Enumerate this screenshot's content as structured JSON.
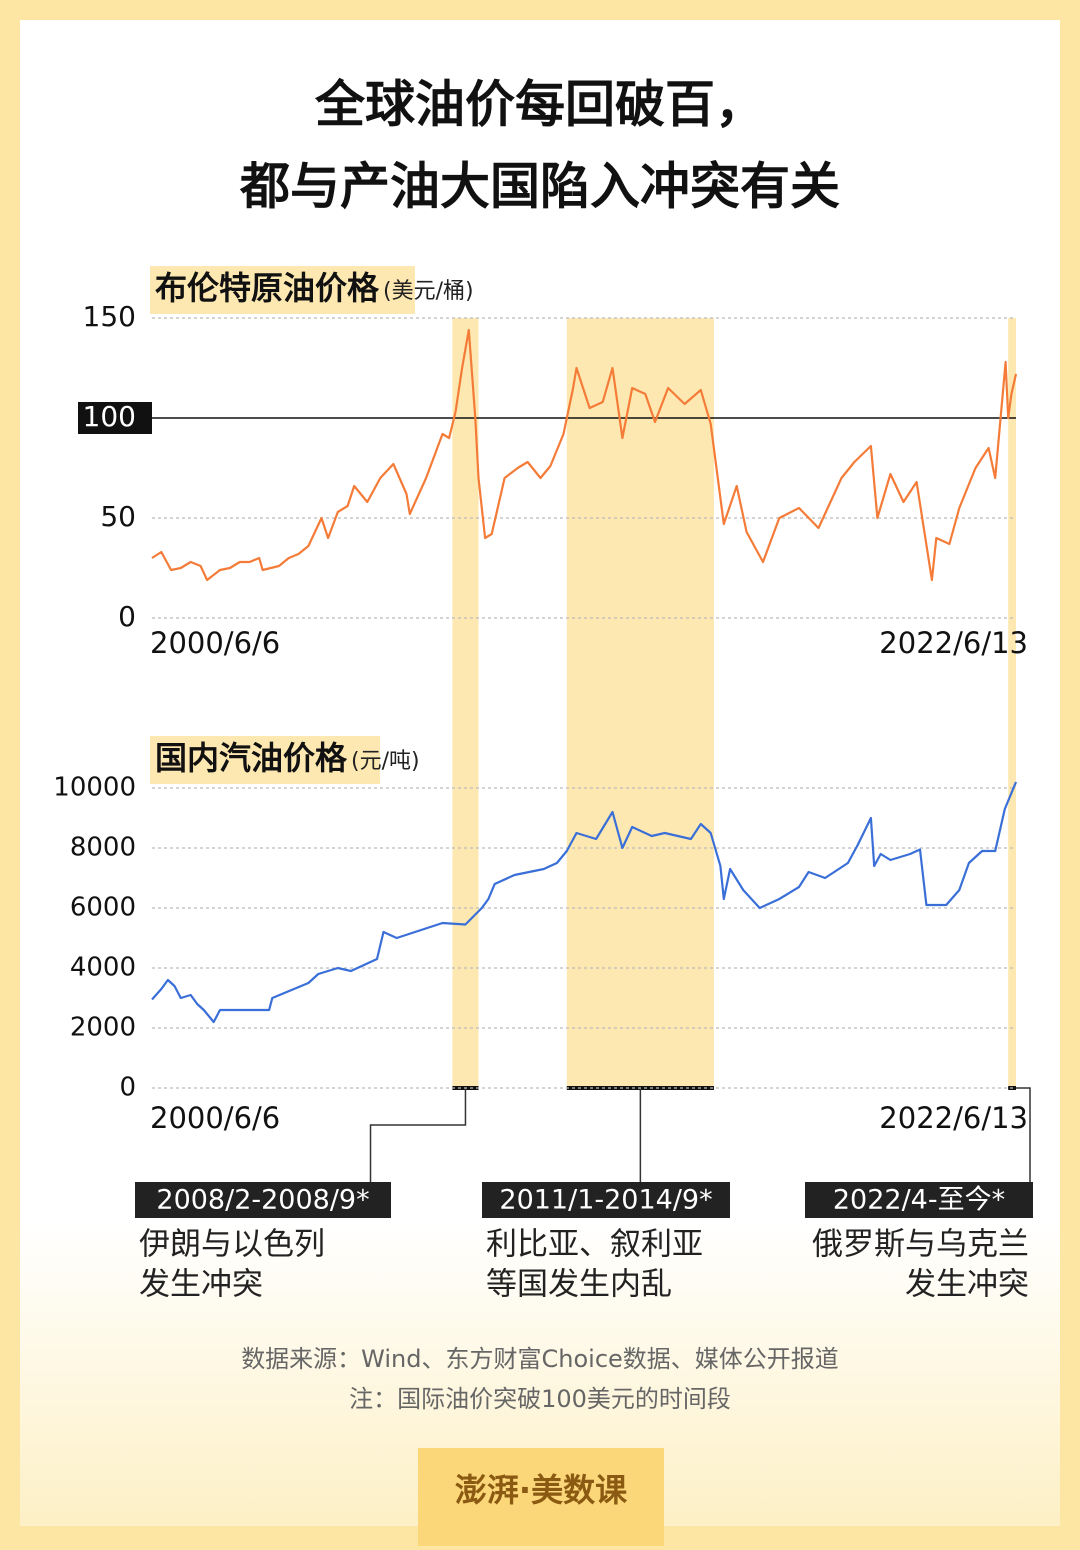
{
  "title": [
    "全球油价每回破百，",
    "都与产油大国陷入冲突有关"
  ],
  "chart_data": [
    {
      "type": "line",
      "title": "布伦特原油价格",
      "unit": "(美元/桶)",
      "color": "#f47c38",
      "xlim": [
        "2000/6/6",
        "2022/6/13"
      ],
      "xticks": [
        "2000/6/6",
        "2022/6/13"
      ],
      "ylim": [
        0,
        150
      ],
      "yticks": [
        0,
        50,
        100,
        150
      ],
      "reference_line": 100,
      "grid": true,
      "x": [
        "2000/6/6",
        "2000/9",
        "2000/12",
        "2001/3",
        "2001/6",
        "2001/9",
        "2001/11",
        "2002/3",
        "2002/6",
        "2002/9",
        "2002/12",
        "2003/3",
        "2003/4",
        "2003/9",
        "2003/12",
        "2004/3",
        "2004/6",
        "2004/10",
        "2004/12",
        "2005/3",
        "2005/6",
        "2005/8",
        "2005/12",
        "2006/4",
        "2006/8",
        "2006/12",
        "2007/1",
        "2007/6",
        "2007/11",
        "2008/1",
        "2008/3",
        "2008/5",
        "2008/7/3",
        "2008/9",
        "2008/10",
        "2008/12",
        "2009/2",
        "2009/6",
        "2009/10",
        "2010/1",
        "2010/5",
        "2010/8",
        "2010/12",
        "2011/3",
        "2011/4",
        "2011/8",
        "2011/12",
        "2012/3",
        "2012/6",
        "2012/9",
        "2013/1",
        "2013/4",
        "2013/8",
        "2014/1",
        "2014/6",
        "2014/9",
        "2014/12",
        "2015/1",
        "2015/5",
        "2015/8",
        "2016/1",
        "2016/6",
        "2016/12",
        "2017/6",
        "2018/1",
        "2018/5",
        "2018/10",
        "2018/12",
        "2019/4",
        "2019/8",
        "2019/12",
        "2020/4/21",
        "2020/6",
        "2020/10",
        "2021/1",
        "2021/6",
        "2021/10",
        "2021/12",
        "2022/3/8",
        "2022/4",
        "2022/5",
        "2022/6/13"
      ],
      "values": [
        30,
        33,
        24,
        25,
        28,
        26,
        19,
        24,
        25,
        28,
        28,
        30,
        24,
        26,
        30,
        32,
        36,
        50,
        40,
        53,
        56,
        66,
        58,
        70,
        77,
        62,
        52,
        70,
        92,
        90,
        103,
        125,
        144,
        100,
        70,
        40,
        42,
        70,
        75,
        78,
        70,
        76,
        92,
        115,
        125,
        105,
        108,
        125,
        90,
        115,
        112,
        98,
        115,
        107,
        114,
        97,
        60,
        47,
        66,
        43,
        28,
        50,
        55,
        45,
        70,
        78,
        86,
        50,
        72,
        58,
        68,
        19,
        40,
        37,
        55,
        75,
        85,
        70,
        128,
        100,
        112,
        122
      ]
    },
    {
      "type": "line",
      "title": "国内汽油价格",
      "unit": "(元/吨)",
      "color": "#3a6fd8",
      "xlim": [
        "2000/6/6",
        "2022/6/13"
      ],
      "xticks": [
        "2000/6/6",
        "2022/6/13"
      ],
      "ylim": [
        0,
        10000
      ],
      "yticks": [
        0,
        2000,
        4000,
        6000,
        8000,
        10000
      ],
      "grid": true,
      "x": [
        "2000/6/6",
        "2000/9",
        "2000/11",
        "2001/1",
        "2001/3",
        "2001/6",
        "2001/8",
        "2001/10",
        "2002/1",
        "2002/3",
        "2003/6",
        "2003/7",
        "2004/6",
        "2004/9",
        "2005/3",
        "2005/7",
        "2006/3",
        "2006/5",
        "2006/9",
        "2007/11",
        "2008/6",
        "2008/11",
        "2009/1",
        "2009/3",
        "2009/9",
        "2010/6",
        "2010/10",
        "2011/1",
        "2011/4",
        "2011/10",
        "2012/3",
        "2012/6",
        "2012/9",
        "2013/3",
        "2013/7",
        "2014/3",
        "2014/6",
        "2014/9",
        "2014/12",
        "2015/1",
        "2015/3",
        "2015/7",
        "2015/12",
        "2016/6",
        "2016/12",
        "2017/3",
        "2017/8",
        "2018/3",
        "2018/6",
        "2018/10",
        "2018/11",
        "2019/1",
        "2019/4",
        "2019/10",
        "2020/1",
        "2020/3",
        "2020/9",
        "2021/1",
        "2021/4",
        "2021/8",
        "2021/12",
        "2022/3",
        "2022/6/13"
      ],
      "values": [
        2950,
        3300,
        3600,
        3400,
        3000,
        3100,
        2800,
        2600,
        2200,
        2600,
        2600,
        3000,
        3500,
        3800,
        4000,
        3900,
        4300,
        5200,
        5000,
        5500,
        5450,
        6000,
        6300,
        6800,
        7100,
        7300,
        7500,
        7900,
        8500,
        8300,
        9200,
        8000,
        8700,
        8400,
        8500,
        8300,
        8800,
        8500,
        7400,
        6300,
        7300,
        6600,
        6000,
        6300,
        6700,
        7200,
        7000,
        7500,
        8100,
        9000,
        7400,
        7800,
        7600,
        7800,
        7950,
        6100,
        6100,
        6600,
        7500,
        7900,
        7900,
        9300,
        10200
      ]
    }
  ],
  "highlights": [
    {
      "label": "2008/2-2008/9*",
      "start": "2008/2",
      "end": "2008/9",
      "note": [
        "伊朗与以色列",
        "发生冲突"
      ]
    },
    {
      "label": "2011/1-2014/9*",
      "start": "2011/1",
      "end": "2014/9",
      "note": [
        "利比亚、叙利亚",
        "等国发生内乱"
      ]
    },
    {
      "label": "2022/4-至今*",
      "start": "2022/4",
      "note": [
        "俄罗斯与乌克兰",
        "发生冲突"
      ]
    }
  ],
  "source": "数据来源：Wind、东方财富Choice数据、媒体公开报道",
  "note": "注：国际油价突破100美元的时间段",
  "logo": "澎湃·美数课"
}
